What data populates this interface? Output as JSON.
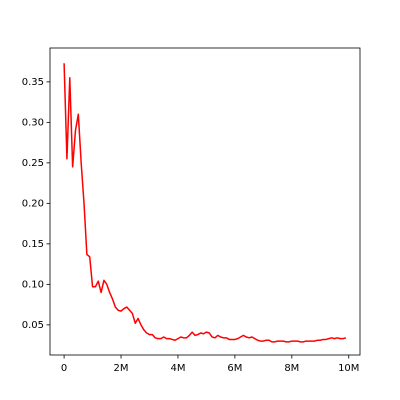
{
  "chart_data": {
    "type": "line",
    "x": [
      0,
      100000,
      200000,
      300000,
      400000,
      500000,
      600000,
      700000,
      800000,
      900000,
      1000000,
      1100000,
      1200000,
      1300000,
      1400000,
      1500000,
      1600000,
      1700000,
      1800000,
      1900000,
      2000000,
      2100000,
      2200000,
      2300000,
      2400000,
      2500000,
      2600000,
      2700000,
      2800000,
      2900000,
      3000000,
      3100000,
      3200000,
      3300000,
      3400000,
      3500000,
      3600000,
      3700000,
      3800000,
      3900000,
      4000000,
      4100000,
      4200000,
      4300000,
      4400000,
      4500000,
      4600000,
      4700000,
      4800000,
      4900000,
      5000000,
      5100000,
      5200000,
      5300000,
      5400000,
      5500000,
      5600000,
      5700000,
      5800000,
      5900000,
      6000000,
      6100000,
      6200000,
      6300000,
      6400000,
      6500000,
      6600000,
      6700000,
      6800000,
      6900000,
      7000000,
      7100000,
      7200000,
      7300000,
      7400000,
      7500000,
      7600000,
      7700000,
      7800000,
      7900000,
      8000000,
      8100000,
      8200000,
      8300000,
      8400000,
      8500000,
      8600000,
      8700000,
      8800000,
      8900000,
      9000000,
      9100000,
      9200000,
      9300000,
      9400000,
      9500000,
      9600000,
      9700000,
      9800000,
      9900000
    ],
    "values": [
      0.373,
      0.255,
      0.355,
      0.245,
      0.29,
      0.31,
      0.25,
      0.2,
      0.137,
      0.134,
      0.097,
      0.097,
      0.104,
      0.09,
      0.105,
      0.1,
      0.09,
      0.082,
      0.072,
      0.068,
      0.067,
      0.07,
      0.072,
      0.068,
      0.064,
      0.052,
      0.058,
      0.05,
      0.044,
      0.04,
      0.038,
      0.038,
      0.034,
      0.033,
      0.033,
      0.035,
      0.033,
      0.033,
      0.032,
      0.031,
      0.033,
      0.035,
      0.034,
      0.034,
      0.037,
      0.041,
      0.037,
      0.038,
      0.04,
      0.039,
      0.041,
      0.04,
      0.035,
      0.034,
      0.037,
      0.035,
      0.034,
      0.034,
      0.032,
      0.032,
      0.032,
      0.033,
      0.035,
      0.037,
      0.035,
      0.034,
      0.035,
      0.033,
      0.031,
      0.03,
      0.03,
      0.031,
      0.031,
      0.029,
      0.029,
      0.03,
      0.03,
      0.03,
      0.029,
      0.029,
      0.03,
      0.03,
      0.03,
      0.029,
      0.029,
      0.03,
      0.03,
      0.03,
      0.03,
      0.031,
      0.031,
      0.032,
      0.032,
      0.033,
      0.034,
      0.033,
      0.034,
      0.033,
      0.033,
      0.034
    ],
    "color": "#ff0000",
    "xlim": [
      -495000,
      10395000
    ],
    "xticks": [
      0,
      {
        "value": 2000000,
        "label": "2M"
      },
      {
        "value": 4000000,
        "label": "4M"
      },
      {
        "value": 6000000,
        "label": "6M"
      },
      {
        "value": 8000000,
        "label": "8M"
      },
      {
        "value": 10000000,
        "label": "10M"
      }
    ],
    "ylim": [
      0.0128,
      0.3918
    ],
    "yticks": [
      0.05,
      {
        "value": 0.1,
        "label": "0.10"
      },
      0.15,
      {
        "value": 0.2,
        "label": "0.20"
      },
      0.25,
      {
        "value": 0.3,
        "label": "0.30"
      },
      0.35
    ]
  }
}
